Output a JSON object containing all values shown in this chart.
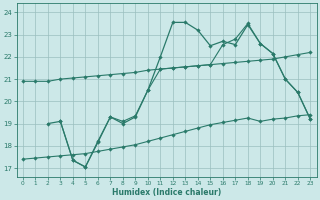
{
  "xlabel": "Humidex (Indice chaleur)",
  "bg_color": "#cce8e8",
  "grid_color": "#9bbfbf",
  "line_color": "#2a7a6a",
  "xlim": [
    -0.5,
    23.5
  ],
  "ylim": [
    16.6,
    24.4
  ],
  "yticks": [
    17,
    18,
    19,
    20,
    21,
    22,
    23,
    24
  ],
  "xticks": [
    0,
    1,
    2,
    3,
    4,
    5,
    6,
    7,
    8,
    9,
    10,
    11,
    12,
    13,
    14,
    15,
    16,
    17,
    18,
    19,
    20,
    21,
    22,
    23
  ],
  "line1_x": [
    0,
    1,
    2,
    3,
    4,
    5,
    6,
    7,
    8,
    9,
    10,
    11,
    12,
    13,
    14,
    15,
    16,
    17,
    18,
    19,
    20,
    21,
    22,
    23
  ],
  "line1_y": [
    20.9,
    20.9,
    20.9,
    21.0,
    21.05,
    21.1,
    21.15,
    21.2,
    21.25,
    21.3,
    21.4,
    21.45,
    21.5,
    21.55,
    21.6,
    21.65,
    21.7,
    21.75,
    21.8,
    21.85,
    21.9,
    22.0,
    22.1,
    22.2
  ],
  "line2_x": [
    0,
    1,
    2,
    3,
    4,
    5,
    6,
    7,
    8,
    9,
    10,
    11,
    12,
    13,
    14,
    15,
    16,
    17,
    18,
    19,
    20,
    21,
    22,
    23
  ],
  "line2_y": [
    17.4,
    17.45,
    17.5,
    17.55,
    17.6,
    17.65,
    17.75,
    17.85,
    17.95,
    18.05,
    18.2,
    18.35,
    18.5,
    18.65,
    18.8,
    18.95,
    19.05,
    19.15,
    19.25,
    19.1,
    19.2,
    19.25,
    19.35,
    19.4
  ],
  "line3_x": [
    2,
    3,
    4,
    5,
    6,
    7,
    8,
    9,
    10,
    11,
    12,
    13,
    14,
    15,
    16,
    17,
    18,
    19,
    20,
    21,
    22,
    23
  ],
  "line3_y": [
    19.0,
    19.1,
    17.35,
    17.05,
    18.2,
    19.3,
    19.0,
    19.3,
    20.5,
    22.0,
    23.55,
    23.55,
    23.2,
    22.5,
    22.7,
    22.55,
    23.45,
    22.6,
    22.15,
    21.0,
    20.4,
    19.2
  ],
  "line4_x": [
    3,
    4,
    5,
    6,
    7,
    8,
    9,
    10,
    11,
    12,
    13,
    14,
    15,
    16,
    17,
    18,
    19,
    20,
    21,
    22,
    23
  ],
  "line4_y": [
    19.1,
    17.35,
    17.05,
    18.15,
    19.3,
    19.1,
    19.35,
    20.5,
    21.45,
    21.5,
    21.55,
    21.6,
    21.65,
    22.55,
    22.8,
    23.5,
    22.6,
    22.15,
    21.0,
    20.4,
    19.2
  ]
}
